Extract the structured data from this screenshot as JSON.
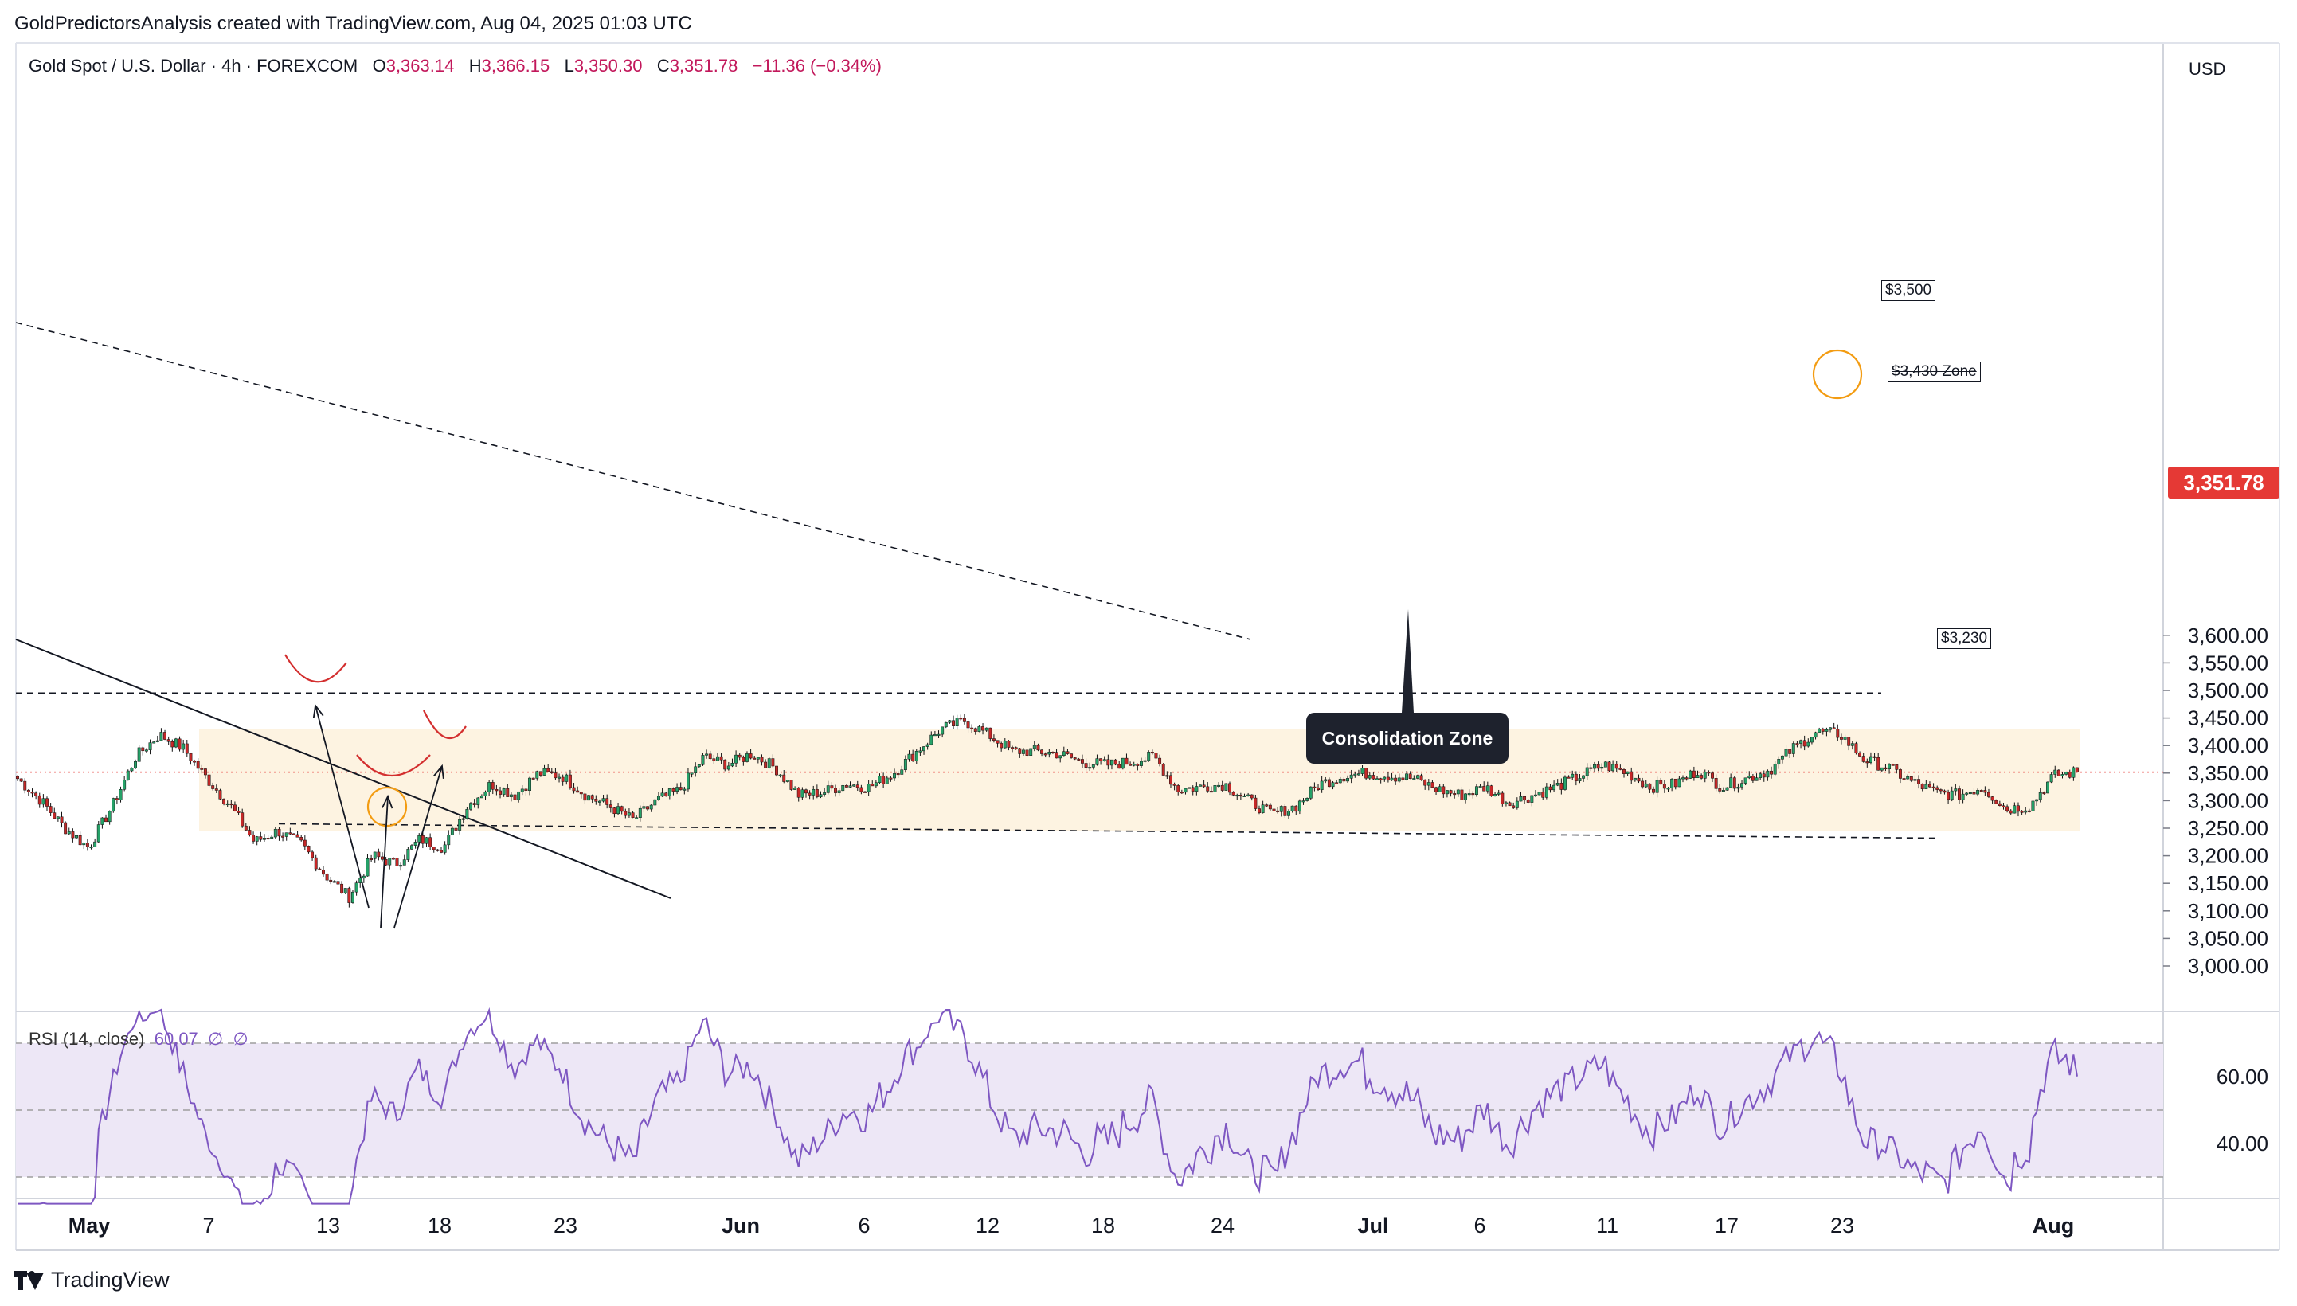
{
  "header": {
    "publisher_line": "GoldPredictorsAnalysis created with TradingView.com, Aug 04, 2025 01:03 UTC"
  },
  "symbol_bar": {
    "name": "Gold Spot / U.S. Dollar · 4h · FOREXCOM",
    "open_label": "O",
    "open": "3,363.14",
    "high_label": "H",
    "high": "3,366.15",
    "low_label": "L",
    "low": "3,350.30",
    "close_label": "C",
    "close": "3,351.78",
    "change": "−11.36 (−0.34%)"
  },
  "price_scale": {
    "currency": "USD",
    "last_price": "3,351.78",
    "last_color": "#e53935"
  },
  "rsi_legend": {
    "label": "RSI (14, close)",
    "value": "60.07",
    "extra1": "∅",
    "extra2": "∅"
  },
  "annotations": {
    "callout": "Consolidation Zone",
    "level_3500": "$3,500",
    "level_3430": "$3,430 Zone",
    "level_3230": "$3,230"
  },
  "branding": {
    "logo_text": "TradingView"
  },
  "colors": {
    "up": "#26a269",
    "down": "#c62828",
    "rsi": "#7e57c2",
    "zone": "#fdf3e1",
    "rsi_band": "#ede7f6"
  },
  "chart_data": [
    {
      "type": "candlestick",
      "title": "Gold Spot / U.S. Dollar · 4h · FOREXCOM",
      "x_ticks": [
        "May",
        "7",
        "13",
        "18",
        "23",
        "Jun",
        "6",
        "12",
        "18",
        "24",
        "Jul",
        "6",
        "11",
        "17",
        "23",
        "Aug"
      ],
      "y_ticks": [
        "3,000.00",
        "3,050.00",
        "3,100.00",
        "3,150.00",
        "3,200.00",
        "3,250.00",
        "3,300.00",
        "3,350.00",
        "3,400.00",
        "3,450.00",
        "3,500.00",
        "3,550.00",
        "3,600.00"
      ],
      "ylim": [
        2960,
        3660
      ],
      "last": 3351.78,
      "close_path": [
        [
          "Apr 30",
          3340
        ],
        [
          "May 1",
          3300
        ],
        [
          "May 2",
          3250
        ],
        [
          "May 3",
          3215
        ],
        [
          "May 5",
          3290
        ],
        [
          "May 6",
          3380
        ],
        [
          "May 7",
          3420
        ],
        [
          "May 8",
          3395
        ],
        [
          "May 9",
          3340
        ],
        [
          "May 10",
          3290
        ],
        [
          "May 12",
          3225
        ],
        [
          "May 13",
          3245
        ],
        [
          "May 14",
          3220
        ],
        [
          "May 15",
          3165
        ],
        [
          "May 15b",
          3125
        ],
        [
          "May 16",
          3200
        ],
        [
          "May 17",
          3185
        ],
        [
          "May 19",
          3230
        ],
        [
          "May 20",
          3215
        ],
        [
          "May 21",
          3290
        ],
        [
          "May 22",
          3330
        ],
        [
          "May 23",
          3310
        ],
        [
          "May 24",
          3350
        ],
        [
          "May 26",
          3345
        ],
        [
          "May 27",
          3310
        ],
        [
          "May 28",
          3290
        ],
        [
          "May 29",
          3265
        ],
        [
          "May 30",
          3300
        ],
        [
          "May 31",
          3320
        ],
        [
          "Jun 2",
          3380
        ],
        [
          "Jun 3",
          3365
        ],
        [
          "Jun 4",
          3385
        ],
        [
          "Jun 5",
          3360
        ],
        [
          "Jun 6",
          3310
        ],
        [
          "Jun 7",
          3315
        ],
        [
          "Jun 9",
          3330
        ],
        [
          "Jun 10",
          3325
        ],
        [
          "Jun 11",
          3350
        ],
        [
          "Jun 12",
          3390
        ],
        [
          "Jun 13",
          3430
        ],
        [
          "Jun 14",
          3445
        ],
        [
          "Jun 15",
          3420
        ],
        [
          "Jun 16",
          3390
        ],
        [
          "Jun 17",
          3390
        ],
        [
          "Jun 18",
          3385
        ],
        [
          "Jun 19",
          3370
        ],
        [
          "Jun 20",
          3365
        ],
        [
          "Jun 21",
          3370
        ],
        [
          "Jun 23",
          3380
        ],
        [
          "Jun 24",
          3320
        ],
        [
          "Jun 25",
          3325
        ],
        [
          "Jun 26",
          3330
        ],
        [
          "Jun 27",
          3300
        ],
        [
          "Jun 29",
          3275
        ],
        [
          "Jun 30",
          3290
        ],
        [
          "Jul 1",
          3330
        ],
        [
          "Jul 2",
          3345
        ],
        [
          "Jul 3",
          3350
        ],
        [
          "Jul 4",
          3345
        ],
        [
          "Jul 6",
          3340
        ],
        [
          "Jul 7",
          3320
        ],
        [
          "Jul 8",
          3310
        ],
        [
          "Jul 9",
          3325
        ],
        [
          "Jul 10",
          3295
        ],
        [
          "Jul 11",
          3310
        ],
        [
          "Jul 12",
          3325
        ],
        [
          "Jul 13",
          3345
        ],
        [
          "Jul 14",
          3365
        ],
        [
          "Jul 15",
          3350
        ],
        [
          "Jul 16",
          3325
        ],
        [
          "Jul 17",
          3330
        ],
        [
          "Jul 18",
          3355
        ],
        [
          "Jul 19",
          3325
        ],
        [
          "Jul 20",
          3340
        ],
        [
          "Jul 21",
          3355
        ],
        [
          "Jul 22",
          3395
        ],
        [
          "Jul 23",
          3425
        ],
        [
          "Jul 24",
          3420
        ],
        [
          "Jul 25",
          3375
        ],
        [
          "Jul 26",
          3360
        ],
        [
          "Jul 27",
          3335
        ],
        [
          "Jul 28",
          3315
        ],
        [
          "Jul 29",
          3310
        ],
        [
          "Jul 30",
          3325
        ],
        [
          "Jul 31",
          3285
        ],
        [
          "Aug 1",
          3290
        ],
        [
          "Aug 1b",
          3345
        ],
        [
          "Aug 2",
          3352
        ]
      ],
      "horizontal_levels": [
        3500,
        3430,
        3230
      ],
      "consolidation_zone": [
        3245,
        3430
      ]
    },
    {
      "type": "line",
      "title": "RSI (14, close)",
      "y_ticks": [
        "40.00",
        "60.00"
      ],
      "bands": [
        30,
        50,
        70
      ],
      "last": 60.07
    }
  ]
}
